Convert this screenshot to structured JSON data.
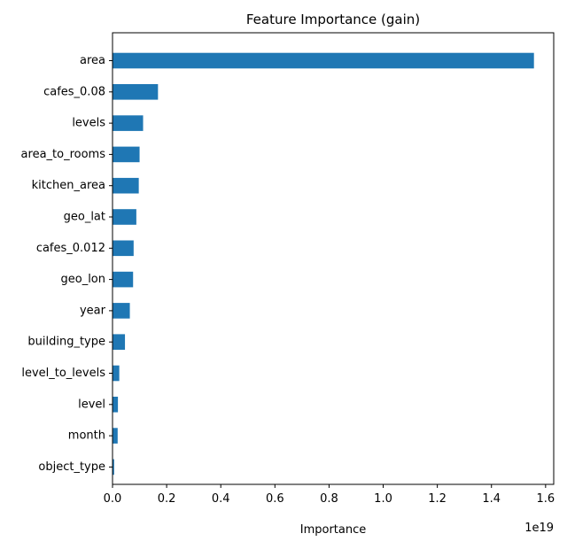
{
  "chart_data": {
    "type": "bar",
    "orientation": "horizontal",
    "title": "Feature Importance (gain)",
    "xlabel": "Importance",
    "ylabel": "",
    "x_scale_label": "1e19",
    "xlim": [
      0,
      1.63
    ],
    "x_ticks": [
      0.0,
      0.2,
      0.4,
      0.6,
      0.8,
      1.0,
      1.2,
      1.4,
      1.6
    ],
    "x_tick_labels": [
      "0.0",
      "0.2",
      "0.4",
      "0.6",
      "0.8",
      "1.0",
      "1.2",
      "1.4",
      "1.6"
    ],
    "categories": [
      "area",
      "cafes_0.08",
      "levels",
      "area_to_rooms",
      "kitchen_area",
      "geo_lat",
      "cafes_0.012",
      "geo_lon",
      "year",
      "building_type",
      "level_to_levels",
      "level",
      "month",
      "object_type"
    ],
    "values": [
      1.557,
      0.168,
      0.113,
      0.1,
      0.097,
      0.088,
      0.078,
      0.076,
      0.064,
      0.046,
      0.025,
      0.02,
      0.019,
      0.006
    ],
    "value_multiplier": 1e+19,
    "grid": false,
    "legend": "none",
    "bar_color": "#1f77b4"
  }
}
